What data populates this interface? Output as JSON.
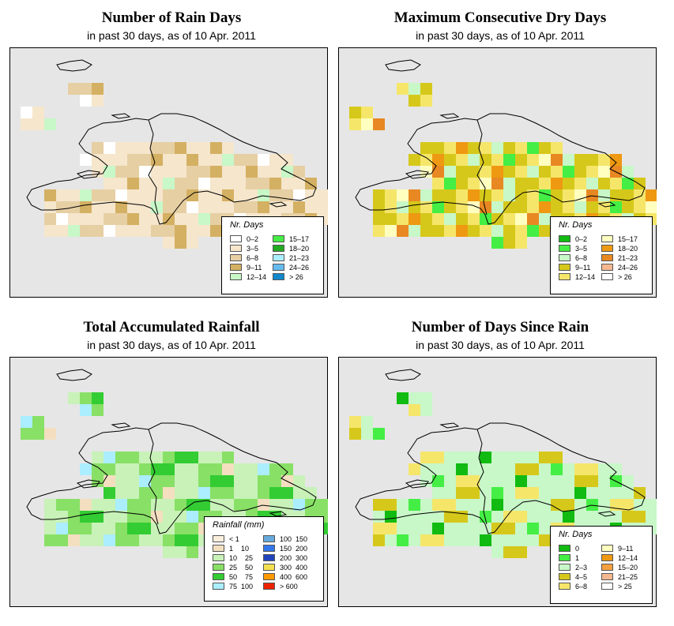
{
  "panels": [
    {
      "id": "rain_days",
      "title": "Number of Rain Days",
      "subtitle": "in past 30 days, as of  10 Apr. 2011",
      "legend_title": "Nr. Days",
      "legend": [
        {
          "label": "0–2",
          "color": "#ffffff"
        },
        {
          "label": "3–5",
          "color": "#f5e6cc"
        },
        {
          "label": "6–8",
          "color": "#e6cfa3"
        },
        {
          "label": "9–11",
          "color": "#d4b062"
        },
        {
          "label": "12–14",
          "color": "#c8f7c8"
        },
        {
          "label": "15–17",
          "color": "#44ee44"
        },
        {
          "label": "18–20",
          "color": "#22aa22"
        },
        {
          "label": "21–23",
          "color": "#aaeeff"
        },
        {
          "label": "24–26",
          "color": "#66bbee"
        },
        {
          "label": "> 26",
          "color": "#1188cc"
        }
      ]
    },
    {
      "id": "dry_days",
      "title": "Maximum Consecutive Dry Days",
      "subtitle": "in past 30 days, as of  10 Apr. 2011",
      "legend_title": "Nr. Days",
      "legend": [
        {
          "label": "0–2",
          "color": "#11bb11"
        },
        {
          "label": "3–5",
          "color": "#44ee44"
        },
        {
          "label": "6–8",
          "color": "#c8f7c8"
        },
        {
          "label": "9–11",
          "color": "#d6c81a"
        },
        {
          "label": "12–14",
          "color": "#f5e66a"
        },
        {
          "label": "15–17",
          "color": "#ffffc0"
        },
        {
          "label": "18–20",
          "color": "#ee9911"
        },
        {
          "label": "21–23",
          "color": "#e88822"
        },
        {
          "label": "24–26",
          "color": "#f5b890"
        },
        {
          "label": "> 26",
          "color": "#ffffff"
        }
      ]
    },
    {
      "id": "rainfall",
      "title": "Total Accumulated Rainfall",
      "subtitle": "in past 30 days, as of  10 Apr. 2011",
      "legend_title": "Rainfall (mm)",
      "legend": [
        {
          "label": "< 1",
          "color": "#fbeedd"
        },
        {
          "label": "1    10",
          "color": "#f3dfc0"
        },
        {
          "label": "10    25",
          "color": "#c8f2b8"
        },
        {
          "label": "25    50",
          "color": "#88e066"
        },
        {
          "label": "50    75",
          "color": "#33cc33"
        },
        {
          "label": "75  100",
          "color": "#aaeeff"
        },
        {
          "label": "100  150",
          "color": "#66aadd"
        },
        {
          "label": "150  200",
          "color": "#3377ee"
        },
        {
          "label": "200  300",
          "color": "#2244bb"
        },
        {
          "label": "300  400",
          "color": "#f5e050"
        },
        {
          "label": "400  600",
          "color": "#ff9900"
        },
        {
          "label": "> 600",
          "color": "#ee2200"
        }
      ]
    },
    {
      "id": "since_rain",
      "title": "Number of Days Since Rain",
      "subtitle": "in past 30 days, as of  10 Apr. 2011",
      "legend_title": "Nr. Days",
      "legend": [
        {
          "label": "0",
          "color": "#11bb11"
        },
        {
          "label": "1",
          "color": "#44ee44"
        },
        {
          "label": "2–3",
          "color": "#c8f7c8"
        },
        {
          "label": "4–5",
          "color": "#d6c81a"
        },
        {
          "label": "6–8",
          "color": "#f5e66a"
        },
        {
          "label": "9–11",
          "color": "#ffffc0"
        },
        {
          "label": "12–14",
          "color": "#ee9911"
        },
        {
          "label": "15–20",
          "color": "#f5a040"
        },
        {
          "label": "21–25",
          "color": "#f5b890"
        },
        {
          "label": "> 25",
          "color": "#ffffff"
        }
      ]
    }
  ],
  "colors": {
    "map_background": "#e6e6e6",
    "coastline": "#000000"
  }
}
